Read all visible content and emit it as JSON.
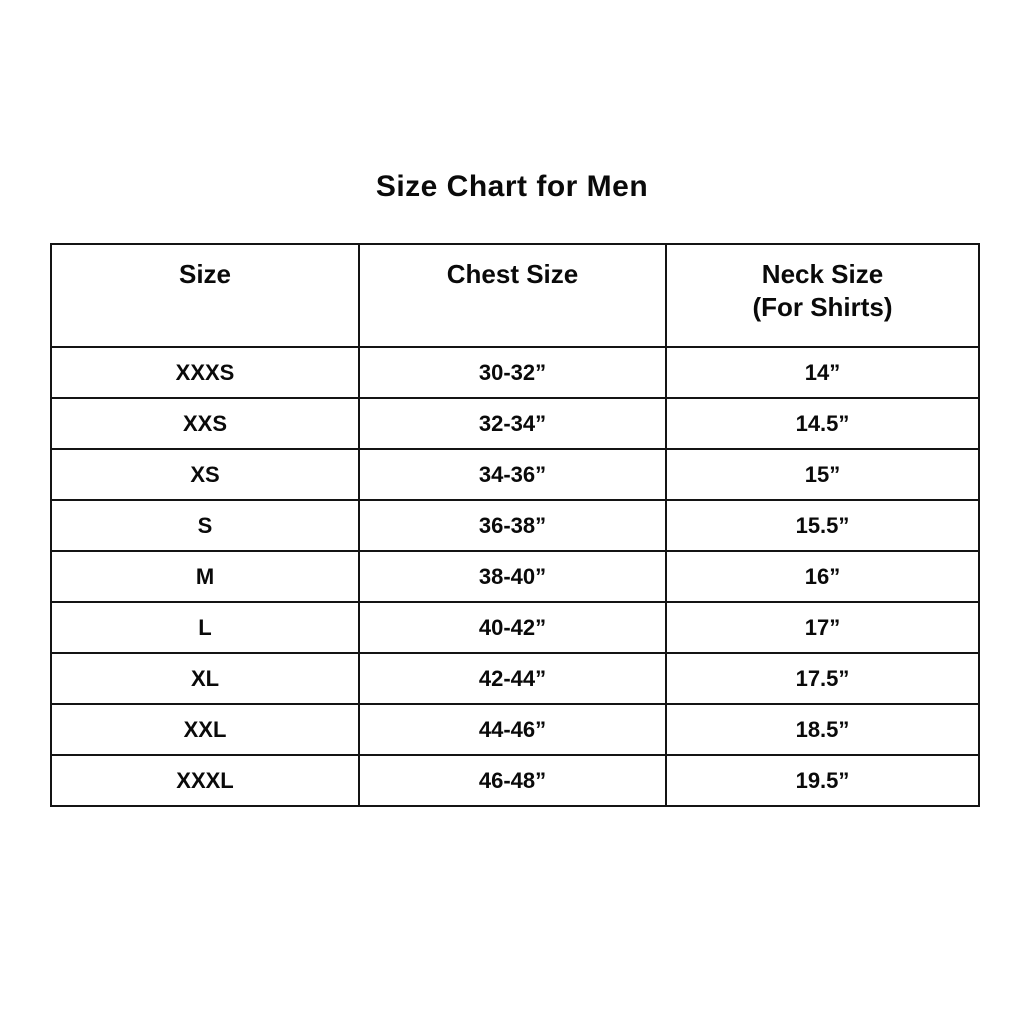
{
  "title": "Size Chart for Men",
  "table": {
    "columns": [
      {
        "label": "Size"
      },
      {
        "label": "Chest Size"
      },
      {
        "label": "Neck Size",
        "sublabel": "(For Shirts)"
      }
    ],
    "rows": [
      {
        "size": "XXXS",
        "chest": "30-32”",
        "neck": "14”"
      },
      {
        "size": "XXS",
        "chest": "32-34”",
        "neck": "14.5”"
      },
      {
        "size": "XS",
        "chest": "34-36”",
        "neck": "15”"
      },
      {
        "size": "S",
        "chest": "36-38”",
        "neck": "15.5”"
      },
      {
        "size": "M",
        "chest": "38-40”",
        "neck": "16”"
      },
      {
        "size": "L",
        "chest": "40-42”",
        "neck": "17”"
      },
      {
        "size": "XL",
        "chest": "42-44”",
        "neck": "17.5”"
      },
      {
        "size": "XXL",
        "chest": "44-46”",
        "neck": "18.5”"
      },
      {
        "size": "XXXL",
        "chest": "46-48”",
        "neck": "19.5”"
      }
    ]
  },
  "chart_data": {
    "type": "table",
    "title": "Size Chart for Men",
    "columns": [
      "Size",
      "Chest Size",
      "Neck Size (For Shirts)"
    ],
    "rows": [
      [
        "XXXS",
        "30-32”",
        "14”"
      ],
      [
        "XXS",
        "32-34”",
        "14.5”"
      ],
      [
        "XS",
        "34-36”",
        "15”"
      ],
      [
        "S",
        "36-38”",
        "15.5”"
      ],
      [
        "M",
        "38-40”",
        "16”"
      ],
      [
        "L",
        "40-42”",
        "17”"
      ],
      [
        "XL",
        "42-44”",
        "17.5”"
      ],
      [
        "XXL",
        "44-46”",
        "18.5”"
      ],
      [
        "XXXL",
        "46-48”",
        "19.5”"
      ]
    ]
  },
  "colors": {
    "background": "#ffffff",
    "text": "#0a0a0a",
    "border": "#141414"
  }
}
